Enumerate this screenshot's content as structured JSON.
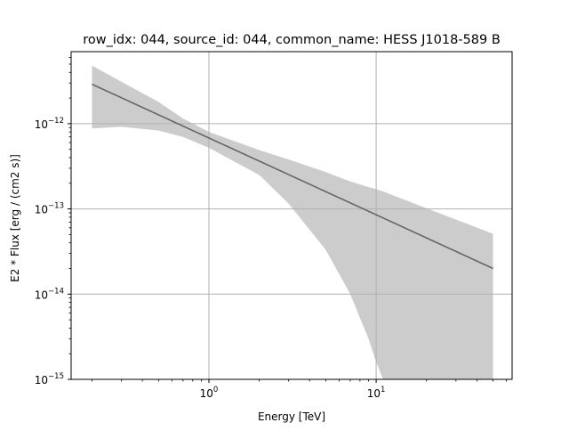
{
  "chart_data": {
    "type": "line",
    "title": "row_idx: 044, source_id: 044, common_name: HESS J1018-589 B",
    "xlabel": "Energy [TeV]",
    "ylabel": "E2 * Flux [erg / (cm2 s)]",
    "xscale": "log",
    "yscale": "log",
    "xlim": [
      0.15,
      65
    ],
    "ylim": [
      1e-15,
      7e-12
    ],
    "grid": true,
    "x_ticks": [
      {
        "value": 1,
        "base": "10",
        "exp": "0"
      },
      {
        "value": 10,
        "base": "10",
        "exp": "1"
      }
    ],
    "y_ticks": [
      {
        "value": 1e-15,
        "base": "10",
        "exp": "−15"
      },
      {
        "value": 1e-14,
        "base": "10",
        "exp": "−14"
      },
      {
        "value": 1e-13,
        "base": "10",
        "exp": "−13"
      },
      {
        "value": 1e-12,
        "base": "10",
        "exp": "−12"
      }
    ],
    "series": [
      {
        "x": [
          0.2,
          50
        ],
        "y": [
          2.9e-12,
          2e-14
        ]
      }
    ],
    "band": {
      "x": [
        0.2,
        0.3,
        0.5,
        0.7,
        1.0,
        2.0,
        3.0,
        5.0,
        7.0,
        9.0,
        10.0,
        11.0,
        50.0
      ],
      "upper": [
        4.8e-12,
        3.1e-12,
        1.8e-12,
        1.15e-12,
        8e-13,
        4.9e-13,
        3.8e-13,
        2.7e-13,
        2.1e-13,
        1.8e-13,
        1.7e-13,
        1.6e-13,
        5.1e-14
      ],
      "lower": [
        8.8e-13,
        9.2e-13,
        8.3e-13,
        7e-13,
        5.2e-13,
        2.5e-13,
        1.15e-13,
        3.3e-14,
        1e-14,
        3e-15,
        1.6e-15,
        1e-15,
        1e-15
      ]
    },
    "colors": {
      "line": "#666666",
      "band": "#cccccc",
      "grid": "#b0b0b0"
    }
  }
}
